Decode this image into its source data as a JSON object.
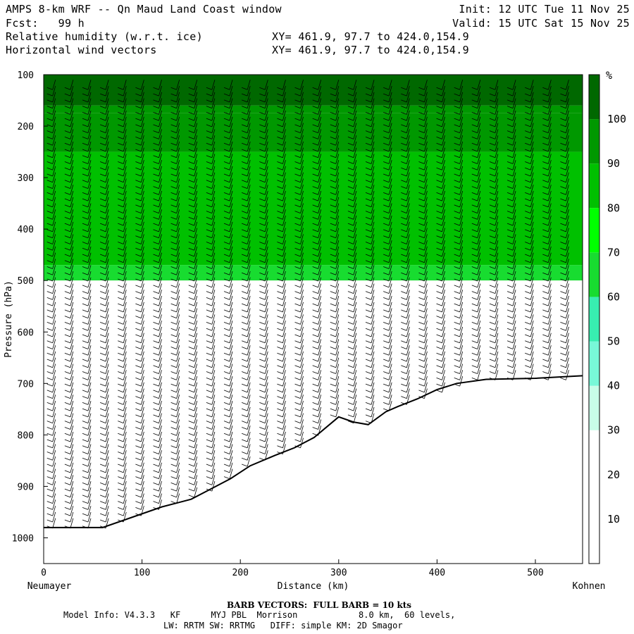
{
  "header": {
    "title": "AMPS 8-km WRF -- Qn Maud Land Coast window",
    "forecast": "Fcst:   99 h",
    "field1": "Relative humidity (w.r.t. ice)",
    "field2": "Horizontal wind vectors",
    "xy1": "XY= 461.9, 97.7 to 424.0,154.9",
    "xy2": "XY= 461.9, 97.7 to 424.0,154.9",
    "init": "Init: 12 UTC Tue 11 Nov 25",
    "valid": "Valid: 15 UTC Sat 15 Nov 25"
  },
  "footer": {
    "barb_note": "BARB VECTORS:  FULL BARB = 10 kts",
    "model_info": "Model Info: V4.3.3   KF      MYJ PBL  Morrison            8.0 km,  60 levels,",
    "model_info2": "LW: RRTM SW: RRTMG   DIFF: simple KM: 2D Smagor"
  },
  "colors": {
    "rh_bins": [
      "#ffffff",
      "#ffffff",
      "#ffffff",
      "#c8fde8",
      "#78f8d8",
      "#38eeb0",
      "#18dc30",
      "#00ff00",
      "#00c000",
      "#009800",
      "#006800",
      "#3a4a0a"
    ]
  },
  "chart_data": {
    "type": "heatmap",
    "xlabel": "Distance (km)",
    "ylabel": "Pressure (hPa)",
    "x_range": [
      0,
      548
    ],
    "y_range": [
      100,
      1050
    ],
    "y_scale": "linear",
    "x_ticks": [
      0,
      100,
      200,
      300,
      400,
      500
    ],
    "y_ticks": [
      100,
      200,
      300,
      400,
      500,
      600,
      700,
      800,
      900,
      1000
    ],
    "left_endpoint": "Neumayer",
    "right_endpoint": "Kohnen",
    "colorbar": {
      "unit": "%",
      "levels": [
        10,
        20,
        30,
        40,
        50,
        60,
        70,
        80,
        90,
        100
      ]
    },
    "terrain_surface": [
      {
        "x": 0,
        "p": 980
      },
      {
        "x": 60,
        "p": 980
      },
      {
        "x": 90,
        "p": 960
      },
      {
        "x": 120,
        "p": 940
      },
      {
        "x": 150,
        "p": 925
      },
      {
        "x": 170,
        "p": 905
      },
      {
        "x": 190,
        "p": 885
      },
      {
        "x": 210,
        "p": 860
      },
      {
        "x": 235,
        "p": 840
      },
      {
        "x": 255,
        "p": 825
      },
      {
        "x": 275,
        "p": 805
      },
      {
        "x": 300,
        "p": 765
      },
      {
        "x": 315,
        "p": 775
      },
      {
        "x": 330,
        "p": 780
      },
      {
        "x": 348,
        "p": 755
      },
      {
        "x": 360,
        "p": 745
      },
      {
        "x": 380,
        "p": 730
      },
      {
        "x": 400,
        "p": 712
      },
      {
        "x": 420,
        "p": 700
      },
      {
        "x": 450,
        "p": 692
      },
      {
        "x": 500,
        "p": 690
      },
      {
        "x": 548,
        "p": 685
      }
    ],
    "rh_layers": [
      {
        "rh": 100,
        "regions": [
          [
            0,
            548,
            100,
            160
          ]
        ]
      },
      {
        "rh": 95,
        "regions": [
          [
            0,
            548,
            160,
            175
          ]
        ]
      },
      {
        "rh": 90,
        "regions": [
          [
            0,
            548,
            175,
            250
          ]
        ]
      },
      {
        "rh": 80,
        "regions": [
          [
            0,
            548,
            250,
            470
          ]
        ]
      },
      {
        "rh": 60,
        "regions": [
          [
            0,
            548,
            470,
            500
          ]
        ]
      },
      {
        "rh": 20,
        "regions": [
          [
            0,
            548,
            500,
            700
          ]
        ]
      }
    ]
  }
}
